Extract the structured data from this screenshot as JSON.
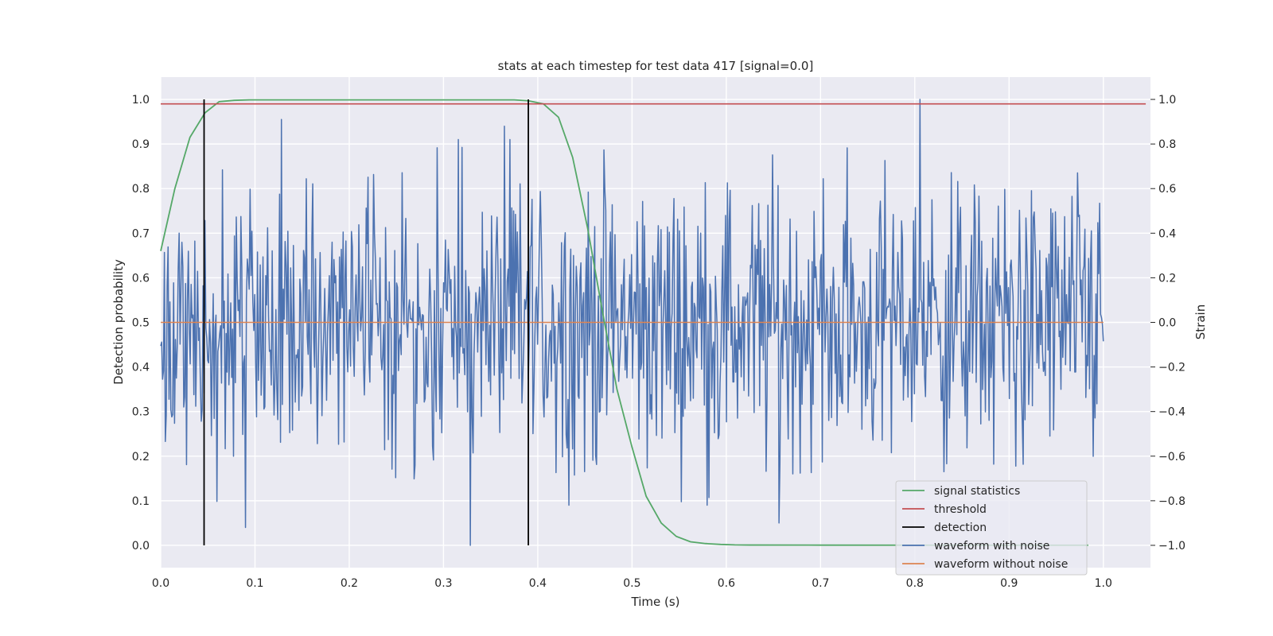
{
  "chart_data": {
    "type": "line",
    "title": "stats at each timestep for test data 417 [signal=0.0]",
    "xlabel": "Time (s)",
    "ylabel": "Detection probability",
    "y2label": "Strain",
    "xlim": [
      0.0,
      1.05
    ],
    "ylim": [
      -0.05,
      1.05
    ],
    "y2lim": [
      -1.1,
      1.1
    ],
    "xticks": [
      "0.0",
      "0.1",
      "0.2",
      "0.3",
      "0.4",
      "0.5",
      "0.6",
      "0.7",
      "0.8",
      "0.9",
      "1.0"
    ],
    "yticks": [
      "0.0",
      "0.1",
      "0.2",
      "0.3",
      "0.4",
      "0.5",
      "0.6",
      "0.7",
      "0.8",
      "0.9",
      "1.0"
    ],
    "y2ticks": [
      "−1.0",
      "−0.8",
      "−0.6",
      "−0.4",
      "−0.2",
      "0.0",
      "0.2",
      "0.4",
      "0.6",
      "0.8",
      "1.0"
    ],
    "grid": true,
    "legend_position": "lower right",
    "colors": {
      "signal": "#55a868",
      "threshold": "#c44e52",
      "detection": "#000000",
      "noisy": "#4c72b0",
      "clean": "#dd8452",
      "background": "#eaeaf2",
      "grid": "#ffffff"
    },
    "series": [
      {
        "name": "signal statistics",
        "axis": "left",
        "x": [
          0.0,
          0.015,
          0.031,
          0.047,
          0.062,
          0.078,
          0.094,
          0.109,
          0.125,
          0.2,
          0.3,
          0.375,
          0.39,
          0.406,
          0.422,
          0.437,
          0.453,
          0.469,
          0.484,
          0.5,
          0.515,
          0.531,
          0.547,
          0.562,
          0.578,
          0.594,
          0.609,
          0.625,
          0.7,
          0.8,
          0.9,
          0.984
        ],
        "values": [
          0.66,
          0.8,
          0.915,
          0.97,
          0.995,
          0.998,
          0.999,
          0.999,
          0.999,
          0.999,
          0.999,
          0.999,
          0.997,
          0.99,
          0.96,
          0.87,
          0.71,
          0.52,
          0.35,
          0.22,
          0.11,
          0.05,
          0.02,
          0.008,
          0.004,
          0.002,
          0.001,
          0.0007,
          0.0005,
          0.0004,
          0.0003,
          0.0003
        ]
      },
      {
        "name": "threshold",
        "axis": "left",
        "x": [
          0.0,
          1.045
        ],
        "values": [
          0.99,
          0.99
        ]
      },
      {
        "name": "detection",
        "axis": "left",
        "x_lines": [
          0.046,
          0.39
        ],
        "ymin": 0.0,
        "ymax": 1.0
      },
      {
        "name": "waveform with noise",
        "axis": "right",
        "x_range": [
          0.0,
          1.0
        ],
        "num_points": 1024,
        "y_min": -1.0,
        "y_max": 1.0,
        "peaks": [
          {
            "x": 0.128,
            "y": 0.91
          },
          {
            "x": 0.365,
            "y": 0.88
          },
          {
            "x": 0.805,
            "y": 1.0
          },
          {
            "x": 0.09,
            "y": -0.92
          },
          {
            "x": 0.328,
            "y": -1.0
          },
          {
            "x": 0.656,
            "y": -0.9
          }
        ]
      },
      {
        "name": "waveform without noise",
        "axis": "right",
        "x": [
          0.0,
          1.0
        ],
        "values": [
          0.0,
          0.0
        ]
      }
    ]
  }
}
